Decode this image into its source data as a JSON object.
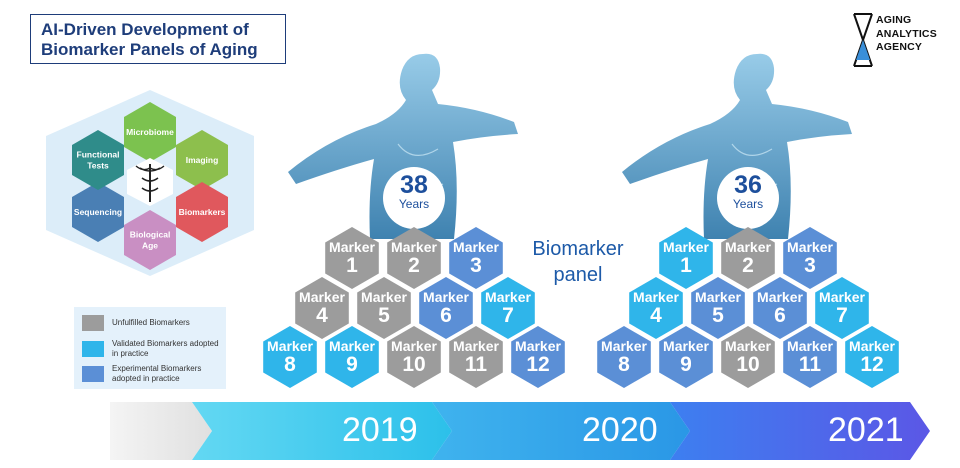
{
  "title": {
    "line1": "AI-Driven Development of",
    "line2": "Biomarker Panels of Aging"
  },
  "logo": {
    "line1": "AGING",
    "line2": "ANALYTICS",
    "line3": "AGENCY"
  },
  "category_hexes": [
    {
      "label": "Microbiome",
      "color": "#7cc24f"
    },
    {
      "label": "Imaging",
      "color": "#8dbf4d"
    },
    {
      "label": "Biomarkers",
      "color": "#e0585d"
    },
    {
      "label": "Biological Age",
      "color": "#c98fc3"
    },
    {
      "label": "Sequencing",
      "color": "#4a7fb4"
    },
    {
      "label": "Functional Tests",
      "color": "#2f8c8a"
    }
  ],
  "legend": [
    {
      "label": "Unfulfilled Biomarkers",
      "color": "#9c9c9c"
    },
    {
      "label": "Validated Biomarkers adopted in practice",
      "color": "#2fb5ea"
    },
    {
      "label": "Experimental Biomarkers adopted in practice",
      "color": "#5b8fd6"
    }
  ],
  "colors": {
    "unfulfilled": "#9c9c9c",
    "validated": "#2fb5ea",
    "experimental": "#5b8fd6"
  },
  "panel_label": "Biomarker panel",
  "panels": [
    {
      "age": "38",
      "age_unit": "Years",
      "markers": [
        {
          "label": "Marker",
          "num": "1",
          "status": "unfulfilled"
        },
        {
          "label": "Marker",
          "num": "2",
          "status": "unfulfilled"
        },
        {
          "label": "Marker",
          "num": "3",
          "status": "experimental"
        },
        {
          "label": "Marker",
          "num": "4",
          "status": "unfulfilled"
        },
        {
          "label": "Marker",
          "num": "5",
          "status": "unfulfilled"
        },
        {
          "label": "Marker",
          "num": "6",
          "status": "experimental"
        },
        {
          "label": "Marker",
          "num": "7",
          "status": "validated"
        },
        {
          "label": "Marker",
          "num": "8",
          "status": "validated"
        },
        {
          "label": "Marker",
          "num": "9",
          "status": "validated"
        },
        {
          "label": "Marker",
          "num": "10",
          "status": "unfulfilled"
        },
        {
          "label": "Marker",
          "num": "11",
          "status": "unfulfilled"
        },
        {
          "label": "Marker",
          "num": "12",
          "status": "experimental"
        }
      ]
    },
    {
      "age": "36",
      "age_unit": "Years",
      "markers": [
        {
          "label": "Marker",
          "num": "1",
          "status": "validated"
        },
        {
          "label": "Marker",
          "num": "2",
          "status": "unfulfilled"
        },
        {
          "label": "Marker",
          "num": "3",
          "status": "experimental"
        },
        {
          "label": "Marker",
          "num": "4",
          "status": "validated"
        },
        {
          "label": "Marker",
          "num": "5",
          "status": "experimental"
        },
        {
          "label": "Marker",
          "num": "6",
          "status": "experimental"
        },
        {
          "label": "Marker",
          "num": "7",
          "status": "validated"
        },
        {
          "label": "Marker",
          "num": "8",
          "status": "experimental"
        },
        {
          "label": "Marker",
          "num": "9",
          "status": "experimental"
        },
        {
          "label": "Marker",
          "num": "10",
          "status": "unfulfilled"
        },
        {
          "label": "Marker",
          "num": "11",
          "status": "experimental"
        },
        {
          "label": "Marker",
          "num": "12",
          "status": "validated"
        }
      ]
    }
  ],
  "timeline": [
    "2019",
    "2020",
    "2021"
  ]
}
